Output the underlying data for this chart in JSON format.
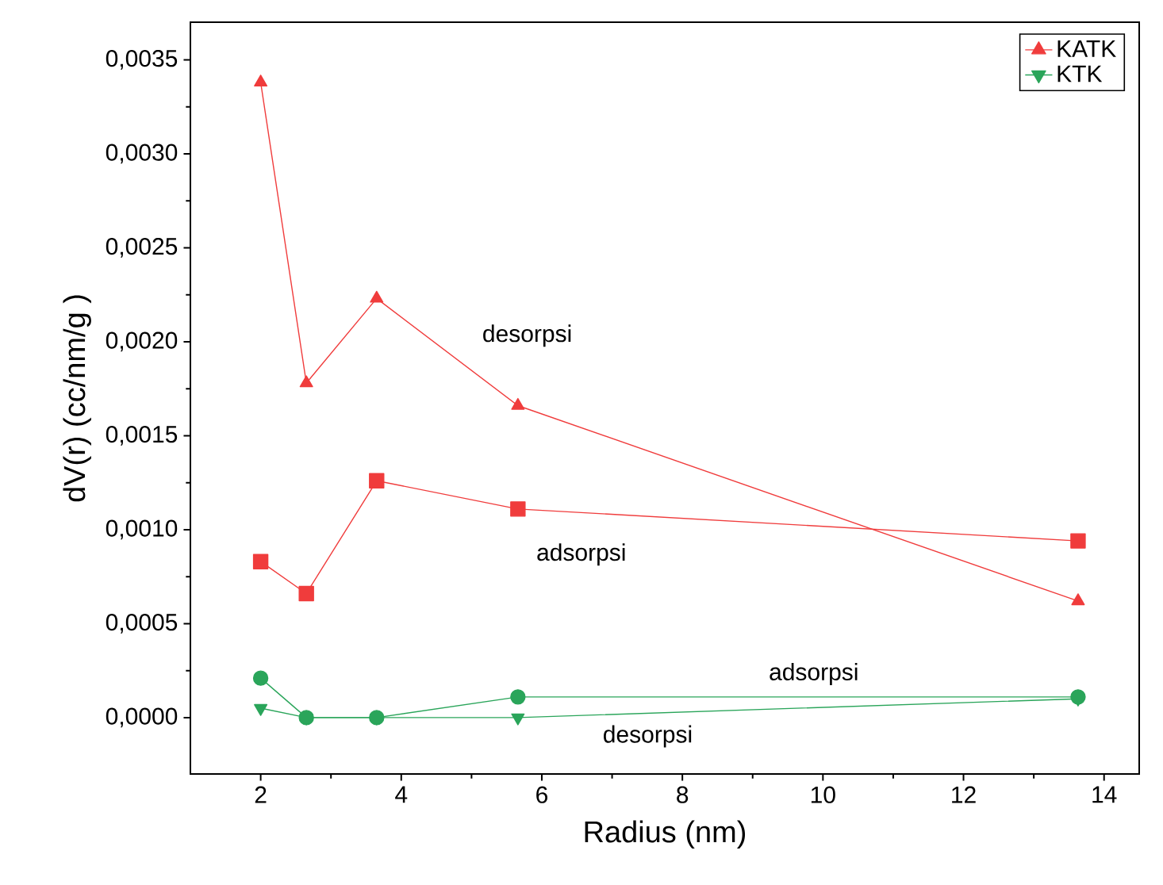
{
  "chart_data": {
    "type": "line",
    "xlabel": "Radius (nm)",
    "ylabel": "dV(r) (cc/nm/g )",
    "xlim": [
      1,
      14.5
    ],
    "ylim": [
      -0.0003,
      0.0037
    ],
    "xticks": [
      2,
      4,
      6,
      8,
      10,
      12,
      14
    ],
    "yticks": [
      {
        "value": 0,
        "label": "0,0000"
      },
      {
        "value": 0.0005,
        "label": "0,0005"
      },
      {
        "value": 0.001,
        "label": "0,0010"
      },
      {
        "value": 0.0015,
        "label": "0,0015"
      },
      {
        "value": 0.002,
        "label": "0,0020"
      },
      {
        "value": 0.0025,
        "label": "0,0025"
      },
      {
        "value": 0.003,
        "label": "0,0030"
      },
      {
        "value": 0.0035,
        "label": "0,0035"
      }
    ],
    "grid": false,
    "legend": "top right",
    "line_style": "solid",
    "series": [
      {
        "name": "KATK",
        "color": "#f03c3c",
        "marker": "triangle",
        "x": [
          2.0,
          2.65,
          3.65,
          5.66,
          13.63
        ],
        "values": [
          0.00338,
          0.00178,
          0.00223,
          0.00166,
          0.00062
        ]
      },
      {
        "name": "KTK",
        "color": "#2aa55a",
        "marker": "triangle-down",
        "x": [
          2.0,
          2.65,
          3.65,
          5.66,
          13.63
        ],
        "values": [
          5e-05,
          0.0,
          0.0,
          0.0,
          0.0001
        ]
      },
      {
        "color": "#f03c3c",
        "marker": "square",
        "x": [
          2.0,
          2.65,
          3.65,
          5.66,
          13.63
        ],
        "values": [
          0.00083,
          0.00066,
          0.00126,
          0.00111,
          0.00094
        ]
      },
      {
        "color": "#2aa55a",
        "marker": "circle",
        "x": [
          2.0,
          2.65,
          3.65,
          5.66,
          13.63
        ],
        "values": [
          0.00021,
          0.0,
          0.0,
          0.00011,
          0.00011
        ]
      }
    ],
    "annotations": [
      "desorpsi",
      "adsorpsi",
      "adsorpsi",
      "desorpsi"
    ]
  }
}
